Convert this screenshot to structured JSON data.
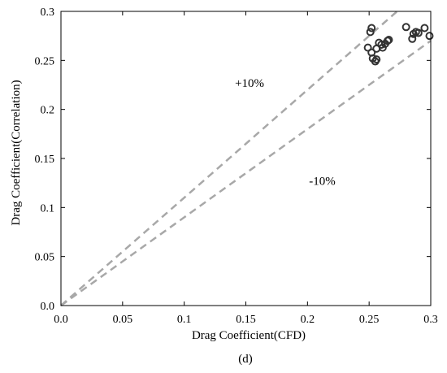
{
  "chart_data": {
    "type": "scatter",
    "xlabel": "Drag Coefficient(CFD)",
    "ylabel": "Drag Coefficient(Correlation)",
    "caption": "(d)",
    "xlim": [
      0,
      0.3
    ],
    "ylim": [
      0,
      0.3
    ],
    "x_ticks": [
      "0.0",
      "0.05",
      "0.1",
      "0.15",
      "0.2",
      "0.25",
      "0.3"
    ],
    "y_ticks": [
      "0.0",
      "0.05",
      "0.1",
      "0.15",
      "0.2",
      "0.25",
      "0.3"
    ],
    "grid": false,
    "annotations": [
      {
        "text": "+10%",
        "x": 0.153,
        "y": 0.223
      },
      {
        "text": "-10%",
        "x": 0.212,
        "y": 0.123
      }
    ],
    "reference_lines": [
      {
        "slope": 1.1,
        "style": "dashed",
        "color": "#a8a8a8"
      },
      {
        "slope": 0.9,
        "style": "dashed",
        "color": "#a8a8a8"
      }
    ],
    "series": [
      {
        "marker": "open-circle",
        "color": "#333333",
        "points": [
          [
            0.252,
            0.283
          ],
          [
            0.251,
            0.279
          ],
          [
            0.249,
            0.263
          ],
          [
            0.252,
            0.258
          ],
          [
            0.253,
            0.252
          ],
          [
            0.255,
            0.249
          ],
          [
            0.256,
            0.251
          ],
          [
            0.256,
            0.262
          ],
          [
            0.258,
            0.268
          ],
          [
            0.26,
            0.266
          ],
          [
            0.261,
            0.263
          ],
          [
            0.263,
            0.267
          ],
          [
            0.265,
            0.27
          ],
          [
            0.266,
            0.271
          ],
          [
            0.28,
            0.284
          ],
          [
            0.285,
            0.272
          ],
          [
            0.286,
            0.277
          ],
          [
            0.288,
            0.279
          ],
          [
            0.29,
            0.278
          ],
          [
            0.295,
            0.283
          ],
          [
            0.299,
            0.275
          ]
        ]
      }
    ]
  }
}
